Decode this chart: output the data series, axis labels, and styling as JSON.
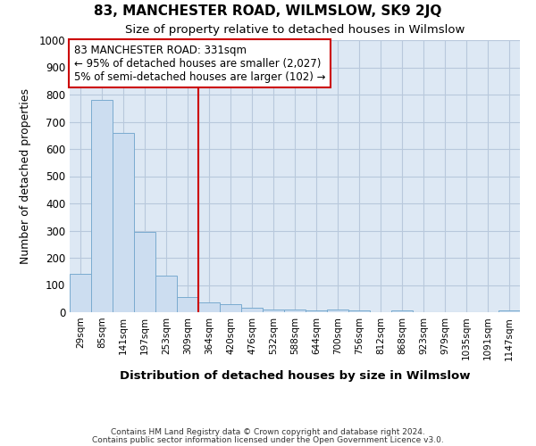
{
  "title": "83, MANCHESTER ROAD, WILMSLOW, SK9 2JQ",
  "subtitle": "Size of property relative to detached houses in Wilmslow",
  "xlabel": "Distribution of detached houses by size in Wilmslow",
  "ylabel": "Number of detached properties",
  "bins": [
    "29sqm",
    "85sqm",
    "141sqm",
    "197sqm",
    "253sqm",
    "309sqm",
    "364sqm",
    "420sqm",
    "476sqm",
    "532sqm",
    "588sqm",
    "644sqm",
    "700sqm",
    "756sqm",
    "812sqm",
    "868sqm",
    "923sqm",
    "979sqm",
    "1035sqm",
    "1091sqm",
    "1147sqm"
  ],
  "bar_heights": [
    140,
    780,
    660,
    295,
    135,
    55,
    35,
    30,
    15,
    10,
    10,
    5,
    10,
    5,
    0,
    5,
    0,
    0,
    0,
    0,
    5
  ],
  "bar_color": "#ccddf0",
  "bar_edge_color": "#7aabcf",
  "grid_color": "#b8c8dc",
  "background_color": "#dde8f4",
  "annotation_line1": "83 MANCHESTER ROAD: 331sqm",
  "annotation_line2": "← 95% of detached houses are smaller (2,027)",
  "annotation_line3": "5% of semi-detached houses are larger (102) →",
  "property_line_x": 5.5,
  "property_line_color": "#cc0000",
  "annotation_box_facecolor": "#ffffff",
  "annotation_box_edgecolor": "#cc0000",
  "ylim": [
    0,
    1000
  ],
  "yticks": [
    0,
    100,
    200,
    300,
    400,
    500,
    600,
    700,
    800,
    900,
    1000
  ],
  "footer_line1": "Contains HM Land Registry data © Crown copyright and database right 2024.",
  "footer_line2": "Contains public sector information licensed under the Open Government Licence v3.0."
}
